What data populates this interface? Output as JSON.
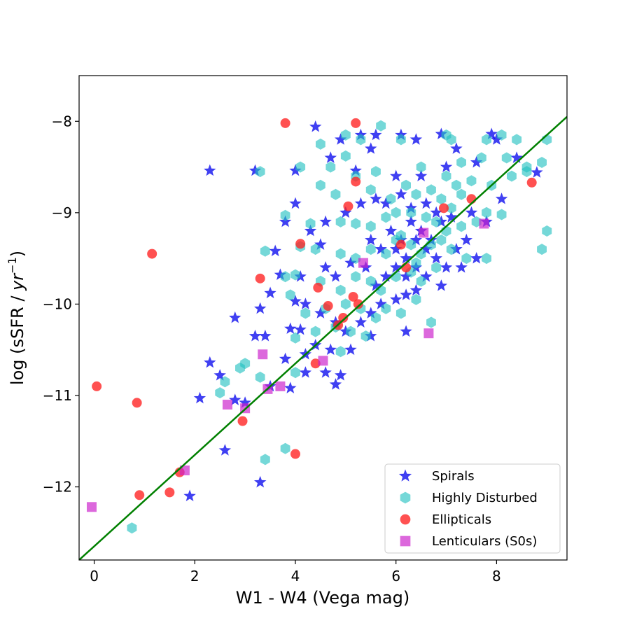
{
  "chart_data": {
    "type": "scatter",
    "title": "",
    "xlabel": "W1 - W4 (Vega mag)",
    "ylabel_prefix": "log (sSFR / ",
    "ylabel_unit": "yr",
    "ylabel_exponent": "−1",
    "ylabel_suffix": ")",
    "xlim": [
      -0.3,
      9.4
    ],
    "ylim": [
      -12.8,
      -7.5
    ],
    "xticks": [
      0,
      2,
      4,
      6,
      8
    ],
    "xtick_labels": [
      "0",
      "2",
      "4",
      "6",
      "8"
    ],
    "yticks": [
      -12,
      -11,
      -10,
      -9,
      -8
    ],
    "ytick_labels": [
      "−12",
      "−11",
      "−10",
      "−9",
      "−8"
    ],
    "grid": false,
    "legend_position": "bottom-right",
    "fit_line": {
      "slope": 0.5,
      "intercept": -12.65,
      "color": "#008000"
    },
    "series": [
      {
        "name": "Spirals",
        "marker": "star",
        "color": "#0000ee",
        "points": [
          [
            2.3,
            -8.54
          ],
          [
            3.2,
            -8.54
          ],
          [
            4.4,
            -8.06
          ],
          [
            4.9,
            -8.2
          ],
          [
            5.3,
            -8.15
          ],
          [
            5.6,
            -8.15
          ],
          [
            6.1,
            -8.15
          ],
          [
            6.4,
            -8.2
          ],
          [
            6.9,
            -8.14
          ],
          [
            7.2,
            -8.3
          ],
          [
            7.9,
            -8.14
          ],
          [
            8.0,
            -8.2
          ],
          [
            4.0,
            -8.54
          ],
          [
            4.7,
            -8.4
          ],
          [
            5.5,
            -8.3
          ],
          [
            5.2,
            -8.54
          ],
          [
            6.0,
            -8.6
          ],
          [
            6.5,
            -8.6
          ],
          [
            7.0,
            -8.5
          ],
          [
            7.6,
            -8.45
          ],
          [
            8.4,
            -8.4
          ],
          [
            8.8,
            -8.56
          ],
          [
            4.0,
            -8.9
          ],
          [
            4.6,
            -9.1
          ],
          [
            5.0,
            -9.0
          ],
          [
            5.3,
            -8.9
          ],
          [
            5.6,
            -8.85
          ],
          [
            5.8,
            -8.9
          ],
          [
            6.1,
            -8.8
          ],
          [
            6.3,
            -8.95
          ],
          [
            6.6,
            -8.9
          ],
          [
            6.8,
            -9.0
          ],
          [
            7.1,
            -9.05
          ],
          [
            7.5,
            -9.0
          ],
          [
            7.8,
            -9.1
          ],
          [
            8.1,
            -8.85
          ],
          [
            3.8,
            -9.1
          ],
          [
            4.3,
            -9.2
          ],
          [
            4.5,
            -9.35
          ],
          [
            3.6,
            -9.42
          ],
          [
            3.7,
            -9.68
          ],
          [
            4.1,
            -9.7
          ],
          [
            4.6,
            -9.6
          ],
          [
            4.8,
            -9.7
          ],
          [
            5.1,
            -9.55
          ],
          [
            5.4,
            -9.6
          ],
          [
            5.6,
            -9.8
          ],
          [
            5.8,
            -9.7
          ],
          [
            6.0,
            -9.4
          ],
          [
            6.2,
            -9.5
          ],
          [
            6.4,
            -9.3
          ],
          [
            6.6,
            -9.4
          ],
          [
            6.8,
            -9.5
          ],
          [
            7.0,
            -9.6
          ],
          [
            7.2,
            -9.4
          ],
          [
            7.4,
            -9.3
          ],
          [
            7.6,
            -9.5
          ],
          [
            5.9,
            -9.2
          ],
          [
            6.1,
            -9.3
          ],
          [
            6.3,
            -9.1
          ],
          [
            6.5,
            -9.2
          ],
          [
            6.7,
            -9.3
          ],
          [
            6.9,
            -9.1
          ],
          [
            5.7,
            -9.4
          ],
          [
            5.5,
            -9.3
          ],
          [
            6.0,
            -9.6
          ],
          [
            6.2,
            -9.7
          ],
          [
            6.4,
            -9.6
          ],
          [
            6.6,
            -9.7
          ],
          [
            6.9,
            -9.8
          ],
          [
            7.3,
            -9.6
          ],
          [
            3.3,
            -10.05
          ],
          [
            3.5,
            -9.88
          ],
          [
            3.2,
            -10.35
          ],
          [
            4.0,
            -9.97
          ],
          [
            4.2,
            -10.0
          ],
          [
            4.5,
            -10.1
          ],
          [
            4.8,
            -10.2
          ],
          [
            5.0,
            -10.3
          ],
          [
            5.3,
            -10.2
          ],
          [
            5.5,
            -10.1
          ],
          [
            5.7,
            -10.0
          ],
          [
            6.0,
            -9.95
          ],
          [
            6.2,
            -9.9
          ],
          [
            6.4,
            -9.85
          ],
          [
            4.1,
            -10.28
          ],
          [
            3.9,
            -10.27
          ],
          [
            4.4,
            -10.45
          ],
          [
            4.7,
            -10.5
          ],
          [
            5.1,
            -10.5
          ],
          [
            5.5,
            -10.35
          ],
          [
            6.2,
            -10.3
          ],
          [
            2.8,
            -10.15
          ],
          [
            2.3,
            -10.64
          ],
          [
            2.5,
            -10.78
          ],
          [
            2.1,
            -11.03
          ],
          [
            2.8,
            -11.05
          ],
          [
            3.0,
            -11.08
          ],
          [
            3.5,
            -10.9
          ],
          [
            3.9,
            -10.92
          ],
          [
            4.2,
            -10.75
          ],
          [
            4.6,
            -10.75
          ],
          [
            4.9,
            -10.78
          ],
          [
            4.8,
            -10.88
          ],
          [
            2.6,
            -11.6
          ],
          [
            3.3,
            -11.95
          ],
          [
            1.9,
            -12.1
          ],
          [
            3.4,
            -10.35
          ],
          [
            3.8,
            -10.6
          ],
          [
            4.2,
            -10.55
          ]
        ]
      },
      {
        "name": "Highly Disturbed",
        "marker": "hexagon",
        "color": "#20c0c0",
        "points": [
          [
            5.0,
            -8.15
          ],
          [
            5.7,
            -8.05
          ],
          [
            6.1,
            -8.2
          ],
          [
            7.0,
            -8.15
          ],
          [
            7.1,
            -8.2
          ],
          [
            7.8,
            -8.2
          ],
          [
            8.1,
            -8.15
          ],
          [
            8.4,
            -8.2
          ],
          [
            9.0,
            -8.2
          ],
          [
            4.5,
            -8.25
          ],
          [
            5.0,
            -8.38
          ],
          [
            5.3,
            -8.2
          ],
          [
            3.3,
            -8.55
          ],
          [
            4.1,
            -8.5
          ],
          [
            4.7,
            -8.5
          ],
          [
            5.6,
            -8.55
          ],
          [
            6.5,
            -8.5
          ],
          [
            7.0,
            -8.6
          ],
          [
            7.3,
            -8.45
          ],
          [
            7.7,
            -8.4
          ],
          [
            8.2,
            -8.4
          ],
          [
            8.6,
            -8.5
          ],
          [
            8.9,
            -8.45
          ],
          [
            4.5,
            -8.7
          ],
          [
            4.8,
            -8.8
          ],
          [
            5.2,
            -8.6
          ],
          [
            5.5,
            -8.75
          ],
          [
            5.9,
            -8.85
          ],
          [
            6.2,
            -8.7
          ],
          [
            6.4,
            -8.8
          ],
          [
            6.7,
            -8.75
          ],
          [
            6.9,
            -8.85
          ],
          [
            7.2,
            -8.7
          ],
          [
            7.5,
            -8.65
          ],
          [
            7.9,
            -8.7
          ],
          [
            8.3,
            -8.6
          ],
          [
            8.6,
            -8.55
          ],
          [
            3.8,
            -9.03
          ],
          [
            4.3,
            -9.12
          ],
          [
            4.9,
            -9.1
          ],
          [
            5.2,
            -9.12
          ],
          [
            5.5,
            -9.15
          ],
          [
            5.8,
            -9.05
          ],
          [
            6.0,
            -9.0
          ],
          [
            6.3,
            -9.0
          ],
          [
            6.6,
            -9.05
          ],
          [
            6.8,
            -9.1
          ],
          [
            7.0,
            -9.2
          ],
          [
            7.3,
            -9.15
          ],
          [
            7.6,
            -9.1
          ],
          [
            7.8,
            -9.0
          ],
          [
            8.1,
            -9.02
          ],
          [
            9.0,
            -9.2
          ],
          [
            8.9,
            -9.4
          ],
          [
            3.4,
            -9.42
          ],
          [
            4.1,
            -9.37
          ],
          [
            4.4,
            -9.4
          ],
          [
            4.9,
            -9.45
          ],
          [
            5.2,
            -9.5
          ],
          [
            5.5,
            -9.4
          ],
          [
            5.8,
            -9.45
          ],
          [
            6.0,
            -9.3
          ],
          [
            6.3,
            -9.35
          ],
          [
            6.5,
            -9.45
          ],
          [
            6.7,
            -9.35
          ],
          [
            6.9,
            -9.3
          ],
          [
            7.1,
            -9.4
          ],
          [
            7.4,
            -9.5
          ],
          [
            7.8,
            -9.5
          ],
          [
            3.8,
            -9.7
          ],
          [
            4.0,
            -9.68
          ],
          [
            4.5,
            -9.75
          ],
          [
            4.9,
            -9.85
          ],
          [
            5.2,
            -9.7
          ],
          [
            5.5,
            -9.75
          ],
          [
            5.7,
            -9.85
          ],
          [
            6.0,
            -9.7
          ],
          [
            6.3,
            -9.65
          ],
          [
            6.5,
            -9.75
          ],
          [
            6.8,
            -9.6
          ],
          [
            3.9,
            -9.9
          ],
          [
            4.2,
            -10.1
          ],
          [
            4.6,
            -10.05
          ],
          [
            5.0,
            -10.0
          ],
          [
            5.3,
            -10.05
          ],
          [
            5.6,
            -10.15
          ],
          [
            5.8,
            -10.05
          ],
          [
            6.1,
            -10.1
          ],
          [
            6.4,
            -9.95
          ],
          [
            6.7,
            -10.2
          ],
          [
            4.0,
            -10.37
          ],
          [
            4.4,
            -10.3
          ],
          [
            4.8,
            -10.25
          ],
          [
            5.1,
            -10.3
          ],
          [
            5.4,
            -10.35
          ],
          [
            4.9,
            -10.52
          ],
          [
            2.5,
            -10.97
          ],
          [
            2.6,
            -10.85
          ],
          [
            2.9,
            -10.7
          ],
          [
            3.0,
            -10.65
          ],
          [
            3.3,
            -10.8
          ],
          [
            4.0,
            -10.75
          ],
          [
            3.8,
            -11.58
          ],
          [
            3.4,
            -11.7
          ],
          [
            0.75,
            -12.45
          ],
          [
            7.1,
            -8.95
          ],
          [
            7.3,
            -8.8
          ],
          [
            6.1,
            -9.25
          ],
          [
            6.4,
            -9.55
          ]
        ]
      },
      {
        "name": "Ellipticals",
        "marker": "circle",
        "color": "#ff2020",
        "points": [
          [
            3.8,
            -8.02
          ],
          [
            5.2,
            -8.02
          ],
          [
            5.2,
            -8.66
          ],
          [
            5.05,
            -8.93
          ],
          [
            8.7,
            -8.67
          ],
          [
            6.95,
            -8.95
          ],
          [
            7.5,
            -8.85
          ],
          [
            1.15,
            -9.45
          ],
          [
            4.1,
            -9.34
          ],
          [
            6.1,
            -9.35
          ],
          [
            6.2,
            -9.6
          ],
          [
            3.3,
            -9.72
          ],
          [
            4.45,
            -9.82
          ],
          [
            4.65,
            -10.02
          ],
          [
            5.15,
            -9.92
          ],
          [
            5.25,
            -10.0
          ],
          [
            4.95,
            -10.15
          ],
          [
            4.85,
            -10.23
          ],
          [
            4.4,
            -10.65
          ],
          [
            0.05,
            -10.9
          ],
          [
            0.85,
            -11.08
          ],
          [
            2.95,
            -11.28
          ],
          [
            1.7,
            -11.84
          ],
          [
            4.0,
            -11.64
          ],
          [
            1.5,
            -12.06
          ],
          [
            0.9,
            -12.09
          ]
        ]
      },
      {
        "name": "Lenticulars (S0s)",
        "marker": "square",
        "color": "#cc20cc",
        "points": [
          [
            6.55,
            -9.22
          ],
          [
            7.75,
            -9.12
          ],
          [
            5.35,
            -9.55
          ],
          [
            6.65,
            -10.32
          ],
          [
            3.35,
            -10.55
          ],
          [
            4.55,
            -10.62
          ],
          [
            3.7,
            -10.9
          ],
          [
            3.45,
            -10.93
          ],
          [
            2.65,
            -11.1
          ],
          [
            3.0,
            -11.14
          ],
          [
            1.8,
            -11.82
          ],
          [
            -0.05,
            -12.22
          ]
        ]
      }
    ]
  }
}
